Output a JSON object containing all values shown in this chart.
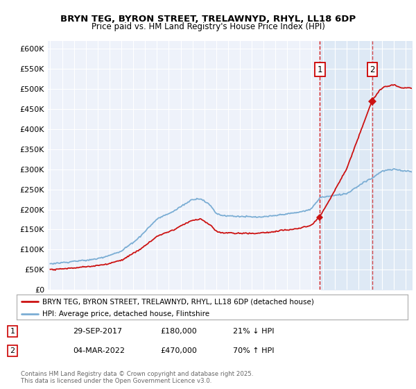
{
  "title": "BRYN TEG, BYRON STREET, TRELAWNYD, RHYL, LL18 6DP",
  "subtitle": "Price paid vs. HM Land Registry's House Price Index (HPI)",
  "hpi_label": "HPI: Average price, detached house, Flintshire",
  "property_label": "BRYN TEG, BYRON STREET, TRELAWNYD, RHYL, LL18 6DP (detached house)",
  "footnote": "Contains HM Land Registry data © Crown copyright and database right 2025.\nThis data is licensed under the Open Government Licence v3.0.",
  "marker1": {
    "year": 2017.75,
    "value": 180000,
    "label": "1",
    "date_str": "29-SEP-2017",
    "price_str": "£180,000",
    "pct_str": "21% ↓ HPI"
  },
  "marker2": {
    "year": 2022.17,
    "value": 470000,
    "label": "2",
    "date_str": "04-MAR-2022",
    "price_str": "£470,000",
    "pct_str": "70% ↑ HPI"
  },
  "ylim": [
    0,
    620000
  ],
  "yticks": [
    0,
    50000,
    100000,
    150000,
    200000,
    250000,
    300000,
    350000,
    400000,
    450000,
    500000,
    550000,
    600000
  ],
  "ytick_labels": [
    "£0",
    "£50K",
    "£100K",
    "£150K",
    "£200K",
    "£250K",
    "£300K",
    "£350K",
    "£400K",
    "£450K",
    "£500K",
    "£550K",
    "£600K"
  ],
  "background_color": "#ffffff",
  "plot_bg_color": "#eef2fa",
  "grid_color": "#ffffff",
  "hpi_color": "#7aadd4",
  "property_color": "#cc1111",
  "dashed_line_color": "#cc0000",
  "shade_color": "#dce8f5",
  "x_start_year": 1995,
  "x_end_year": 2025.5,
  "n_points": 366
}
